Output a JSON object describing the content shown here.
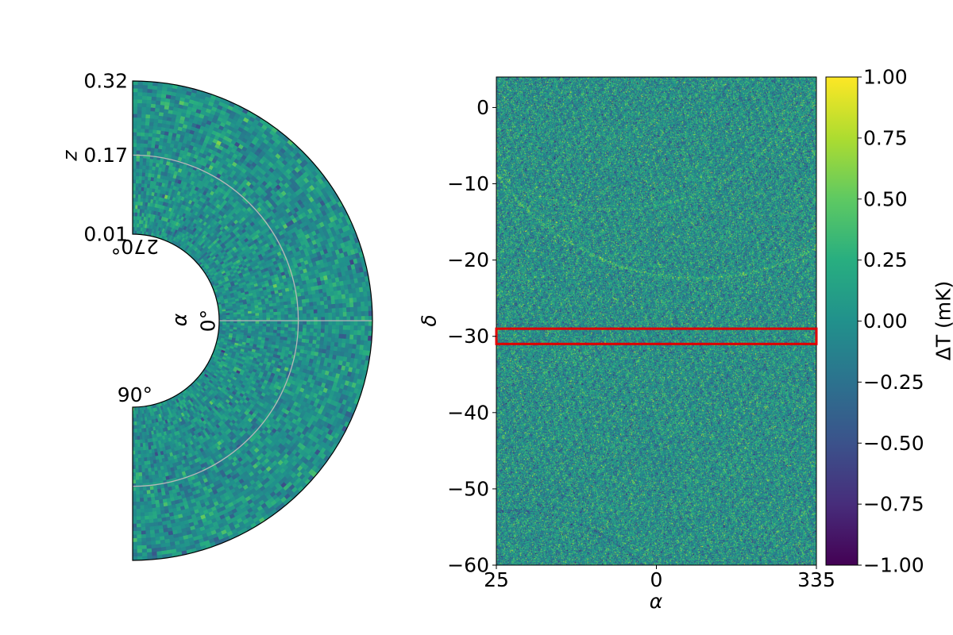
{
  "chart_data": [
    {
      "type": "heatmap",
      "projection": "polar-wedge",
      "angle_label": "α",
      "radius_label": "z",
      "angle_ticks": [
        {
          "label": "0°",
          "deg": 0
        },
        {
          "label": "90°",
          "deg": 90
        },
        {
          "label": "270°",
          "deg": 270
        }
      ],
      "radius_ticks": [
        "0.01",
        "0.17",
        "0.32"
      ],
      "radius_range": [
        0.01,
        0.32
      ],
      "angle_range_deg": [
        -90,
        90
      ],
      "grid": true,
      "colormap": "viridis",
      "value_range": [
        -1.0,
        1.0
      ]
    },
    {
      "type": "heatmap",
      "xlabel": "α",
      "ylabel": "δ",
      "x_ticks": [
        "25",
        "0",
        "335"
      ],
      "y_ticks": [
        {
          "label": "0",
          "value": 0
        },
        {
          "label": "−10",
          "value": -10
        },
        {
          "label": "−20",
          "value": -20
        },
        {
          "label": "−30",
          "value": -30
        },
        {
          "label": "−40",
          "value": -40
        },
        {
          "label": "−50",
          "value": -50
        },
        {
          "label": "−60",
          "value": -60
        }
      ],
      "ylim": [
        -60,
        4
      ],
      "highlight_band": {
        "delta_range": [
          -31,
          -29
        ],
        "color": "#e00000"
      },
      "colormap": "viridis",
      "value_range": [
        -1.0,
        1.0
      ],
      "colorbar": {
        "label": "ΔT (mK)",
        "ticks": [
          {
            "label": "1.00",
            "value": 1.0
          },
          {
            "label": "0.75",
            "value": 0.75
          },
          {
            "label": "0.50",
            "value": 0.5
          },
          {
            "label": "0.25",
            "value": 0.25
          },
          {
            "label": "0.00",
            "value": 0.0
          },
          {
            "label": "−0.25",
            "value": -0.25
          },
          {
            "label": "−0.50",
            "value": -0.5
          },
          {
            "label": "−0.75",
            "value": -0.75
          },
          {
            "label": "−1.00",
            "value": -1.0
          }
        ]
      }
    }
  ]
}
